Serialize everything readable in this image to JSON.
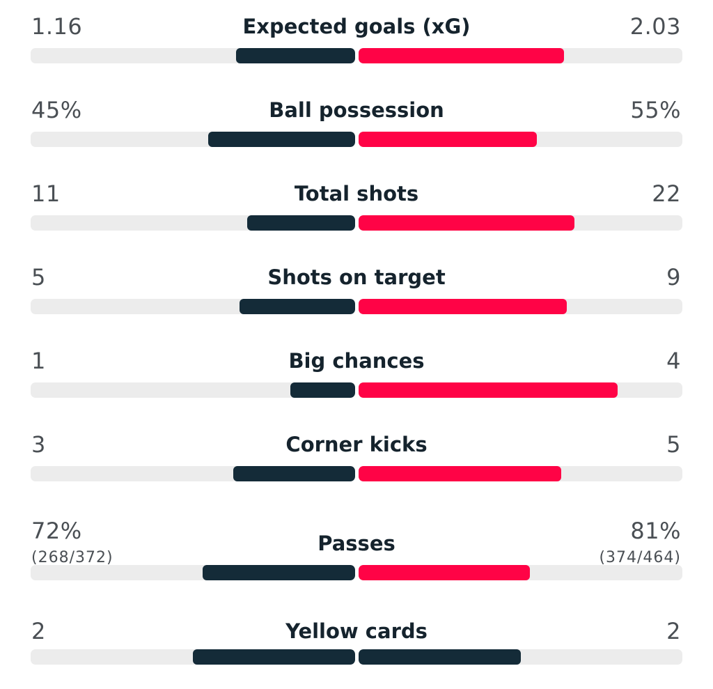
{
  "colors": {
    "home": "#142b38",
    "away": "#ff0346",
    "neutral_away": "#142b38",
    "track": "#ececec"
  },
  "stats": [
    {
      "label": "Expected goals (xG)",
      "home": "1.16",
      "away": "2.03",
      "home_fill": 0.366,
      "away_fill": 0.635
    },
    {
      "label": "Ball possession",
      "home": "45%",
      "away": "55%",
      "home_fill": 0.452,
      "away_fill": 0.551
    },
    {
      "label": "Total shots",
      "home": "11",
      "away": "22",
      "home_fill": 0.333,
      "away_fill": 0.667
    },
    {
      "label": "Shots on target",
      "home": "5",
      "away": "9",
      "home_fill": 0.357,
      "away_fill": 0.643
    },
    {
      "label": "Big chances",
      "home": "1",
      "away": "4",
      "home_fill": 0.2,
      "away_fill": 0.8
    },
    {
      "label": "Corner kicks",
      "home": "3",
      "away": "5",
      "home_fill": 0.375,
      "away_fill": 0.625
    },
    {
      "label": "Passes",
      "home": "72%",
      "away": "81%",
      "home_sub": "(268/372)",
      "away_sub": "(374/464)",
      "home_fill": 0.471,
      "away_fill": 0.529
    },
    {
      "label": "Yellow cards",
      "home": "2",
      "away": "2",
      "home_fill": 0.5,
      "away_fill": 0.5,
      "away_color": "neutral"
    }
  ]
}
